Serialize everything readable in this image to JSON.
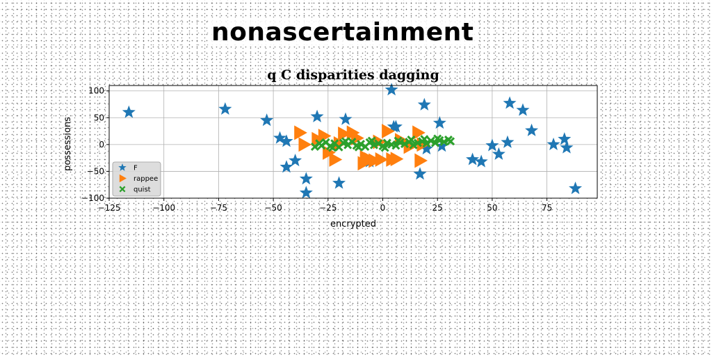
{
  "page": {
    "title": "nonascertainment"
  },
  "chart_data": {
    "type": "scatter",
    "title": "q C disparities dagging",
    "xlabel": "encrypted",
    "ylabel": "possessions",
    "xlim": [
      -125,
      98
    ],
    "ylim": [
      -100,
      110
    ],
    "xticks": [
      -125,
      -100,
      -75,
      -50,
      -25,
      0,
      25,
      50,
      75
    ],
    "yticks": [
      -100,
      -50,
      0,
      50,
      100
    ],
    "xtick_labels": [
      "−125",
      "−100",
      "−75",
      "−50",
      "−25",
      "0",
      "25",
      "50",
      "75"
    ],
    "ytick_labels": [
      "−100",
      "−50",
      "0",
      "50",
      "100"
    ],
    "grid": true,
    "legend_position": "lower-left",
    "series": [
      {
        "name": "F",
        "marker": "star",
        "color": "#1f77b4",
        "points": [
          [
            -116,
            60
          ],
          [
            -72,
            66
          ],
          [
            -53,
            45
          ],
          [
            -47,
            12
          ],
          [
            -44,
            6
          ],
          [
            -44,
            -42
          ],
          [
            -40,
            -30
          ],
          [
            -35,
            -64
          ],
          [
            -35,
            -90
          ],
          [
            -30,
            52
          ],
          [
            -20,
            -72
          ],
          [
            -17,
            47
          ],
          [
            -6,
            -32
          ],
          [
            4,
            102
          ],
          [
            5,
            33
          ],
          [
            6,
            33
          ],
          [
            17,
            -55
          ],
          [
            19,
            74
          ],
          [
            20,
            -8
          ],
          [
            26,
            40
          ],
          [
            27,
            -3
          ],
          [
            41,
            -28
          ],
          [
            45,
            -32
          ],
          [
            50,
            -2
          ],
          [
            53,
            -18
          ],
          [
            57,
            4
          ],
          [
            58,
            77
          ],
          [
            64,
            64
          ],
          [
            68,
            26
          ],
          [
            78,
            0
          ],
          [
            83,
            10
          ],
          [
            84,
            -6
          ],
          [
            88,
            -82
          ]
        ]
      },
      {
        "name": "rappee",
        "marker": "triangle-right",
        "color": "#ff7f0e",
        "points": [
          [
            -38,
            22
          ],
          [
            -36,
            0
          ],
          [
            -27,
            16
          ],
          [
            -22,
            -28
          ],
          [
            -20,
            2
          ],
          [
            -18,
            20
          ],
          [
            -14,
            22
          ],
          [
            -9,
            -35
          ],
          [
            -8,
            -24
          ],
          [
            -6,
            -28
          ],
          [
            -4,
            -30
          ],
          [
            -1,
            -28
          ],
          [
            2,
            25
          ],
          [
            4,
            -28
          ],
          [
            6,
            -27
          ],
          [
            16,
            22
          ],
          [
            17,
            -30
          ],
          [
            18,
            0
          ],
          [
            -30,
            10
          ],
          [
            -12,
            12
          ],
          [
            -2,
            5
          ],
          [
            8,
            8
          ],
          [
            12,
            -4
          ],
          [
            -25,
            -15
          ]
        ]
      },
      {
        "name": "quist",
        "marker": "x-filled",
        "color": "#2ca02c",
        "points": [
          [
            -31,
            -4
          ],
          [
            -28,
            -2
          ],
          [
            -26,
            4
          ],
          [
            -24,
            -3
          ],
          [
            -22,
            2
          ],
          [
            -20,
            -5
          ],
          [
            -18,
            3
          ],
          [
            -16,
            -1
          ],
          [
            -14,
            5
          ],
          [
            -12,
            -2
          ],
          [
            -10,
            1
          ],
          [
            -8,
            -4
          ],
          [
            -6,
            4
          ],
          [
            -4,
            -1
          ],
          [
            -2,
            2
          ],
          [
            0,
            -3
          ],
          [
            2,
            3
          ],
          [
            4,
            0
          ],
          [
            6,
            -2
          ],
          [
            8,
            4
          ],
          [
            10,
            1
          ],
          [
            12,
            5
          ],
          [
            14,
            -1
          ],
          [
            16,
            3
          ],
          [
            18,
            6
          ],
          [
            20,
            2
          ],
          [
            22,
            7
          ],
          [
            24,
            3
          ],
          [
            26,
            8
          ],
          [
            28,
            5
          ],
          [
            30,
            9
          ],
          [
            31,
            6
          ],
          [
            -29,
            2
          ],
          [
            -23,
            -6
          ],
          [
            -17,
            6
          ],
          [
            -11,
            -5
          ],
          [
            -5,
            7
          ],
          [
            1,
            -6
          ],
          [
            7,
            7
          ],
          [
            13,
            9
          ],
          [
            19,
            10
          ],
          [
            25,
            11
          ]
        ]
      }
    ]
  }
}
